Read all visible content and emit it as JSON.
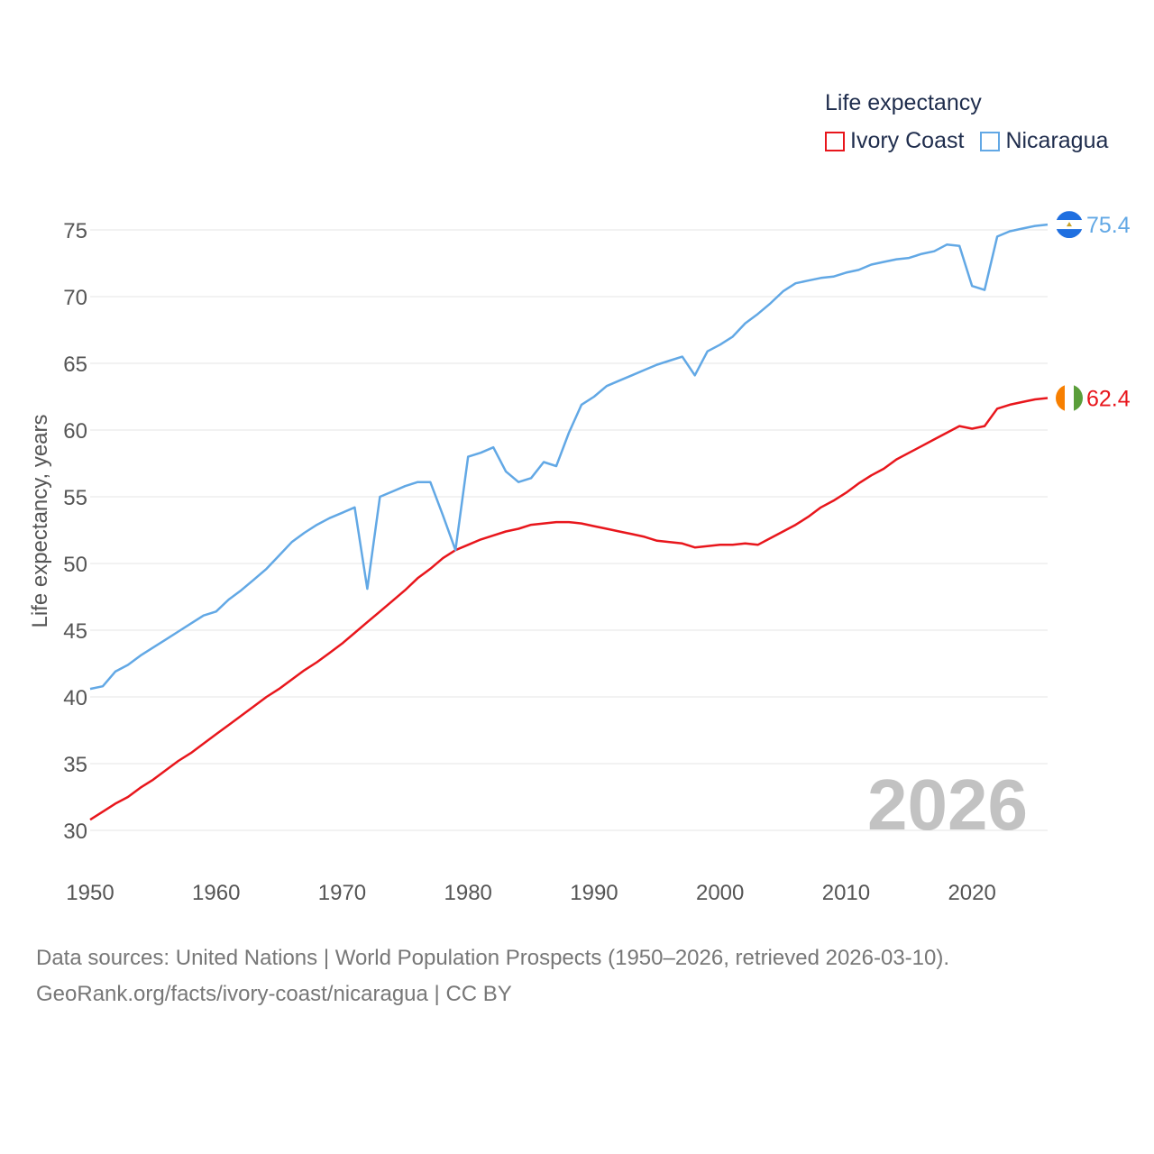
{
  "legend": {
    "title": "Life expectancy",
    "items": [
      {
        "label": "Ivory Coast",
        "color": "#e8161c"
      },
      {
        "label": "Nicaragua",
        "color": "#62a8e5"
      }
    ]
  },
  "footer": {
    "line1": "Data sources: United Nations | World Population Prospects (1950–2026, retrieved 2026-03-10).",
    "line2": "GeoRank.org/facts/ivory-coast/nicaragua | CC BY"
  },
  "chart_data": {
    "type": "line",
    "title": "Life expectancy",
    "xlabel": "",
    "ylabel": "Life expectancy, years",
    "xlim": [
      1950,
      2026
    ],
    "ylim": [
      27.5,
      77.5
    ],
    "xticks": [
      1950,
      1960,
      1970,
      1980,
      1990,
      2000,
      2010,
      2020
    ],
    "yticks": [
      30,
      35,
      40,
      45,
      50,
      55,
      60,
      65,
      70,
      75
    ],
    "watermark": "2026",
    "grid": true,
    "legend_position": "top-right",
    "x": [
      1950,
      1951,
      1952,
      1953,
      1954,
      1955,
      1956,
      1957,
      1958,
      1959,
      1960,
      1961,
      1962,
      1963,
      1964,
      1965,
      1966,
      1967,
      1968,
      1969,
      1970,
      1971,
      1972,
      1973,
      1974,
      1975,
      1976,
      1977,
      1978,
      1979,
      1980,
      1981,
      1982,
      1983,
      1984,
      1985,
      1986,
      1987,
      1988,
      1989,
      1990,
      1991,
      1992,
      1993,
      1994,
      1995,
      1996,
      1997,
      1998,
      1999,
      2000,
      2001,
      2002,
      2003,
      2004,
      2005,
      2006,
      2007,
      2008,
      2009,
      2010,
      2011,
      2012,
      2013,
      2014,
      2015,
      2016,
      2017,
      2018,
      2019,
      2020,
      2021,
      2022,
      2023,
      2024,
      2025,
      2026
    ],
    "series": [
      {
        "name": "Ivory Coast",
        "color": "#e8161c",
        "end_label": "62.4",
        "values": [
          30.8,
          31.4,
          32.0,
          32.5,
          33.2,
          33.8,
          34.5,
          35.2,
          35.8,
          36.5,
          37.2,
          37.9,
          38.6,
          39.3,
          40.0,
          40.6,
          41.3,
          42.0,
          42.6,
          43.3,
          44.0,
          44.8,
          45.6,
          46.4,
          47.2,
          48.0,
          48.9,
          49.6,
          50.4,
          51.0,
          51.4,
          51.8,
          52.1,
          52.4,
          52.6,
          52.9,
          53.0,
          53.1,
          53.1,
          53.0,
          52.8,
          52.6,
          52.4,
          52.2,
          52.0,
          51.7,
          51.6,
          51.5,
          51.2,
          51.3,
          51.4,
          51.4,
          51.5,
          51.4,
          51.9,
          52.4,
          52.9,
          53.5,
          54.2,
          54.7,
          55.3,
          56.0,
          56.6,
          57.1,
          57.8,
          58.3,
          58.8,
          59.3,
          59.8,
          60.3,
          60.1,
          60.3,
          61.6,
          61.9,
          62.1,
          62.3,
          62.4
        ]
      },
      {
        "name": "Nicaragua",
        "color": "#62a8e5",
        "end_label": "75.4",
        "values": [
          40.6,
          40.8,
          41.9,
          42.4,
          43.1,
          43.7,
          44.3,
          44.9,
          45.5,
          46.1,
          46.4,
          47.3,
          48.0,
          48.8,
          49.6,
          50.6,
          51.6,
          52.3,
          52.9,
          53.4,
          53.8,
          54.2,
          48.1,
          55.0,
          55.4,
          55.8,
          56.1,
          56.1,
          53.6,
          51.0,
          58.0,
          58.3,
          58.7,
          56.9,
          56.1,
          56.4,
          57.6,
          57.3,
          59.8,
          61.9,
          62.5,
          63.3,
          63.7,
          64.1,
          64.5,
          64.9,
          65.2,
          65.5,
          64.1,
          65.9,
          66.4,
          67.0,
          68.0,
          68.7,
          69.5,
          70.4,
          71.0,
          71.2,
          71.4,
          71.5,
          71.8,
          72.0,
          72.4,
          72.6,
          72.8,
          72.9,
          73.2,
          73.4,
          73.9,
          73.8,
          70.8,
          70.5,
          74.5,
          74.9,
          75.1,
          75.3,
          75.4
        ]
      }
    ]
  }
}
